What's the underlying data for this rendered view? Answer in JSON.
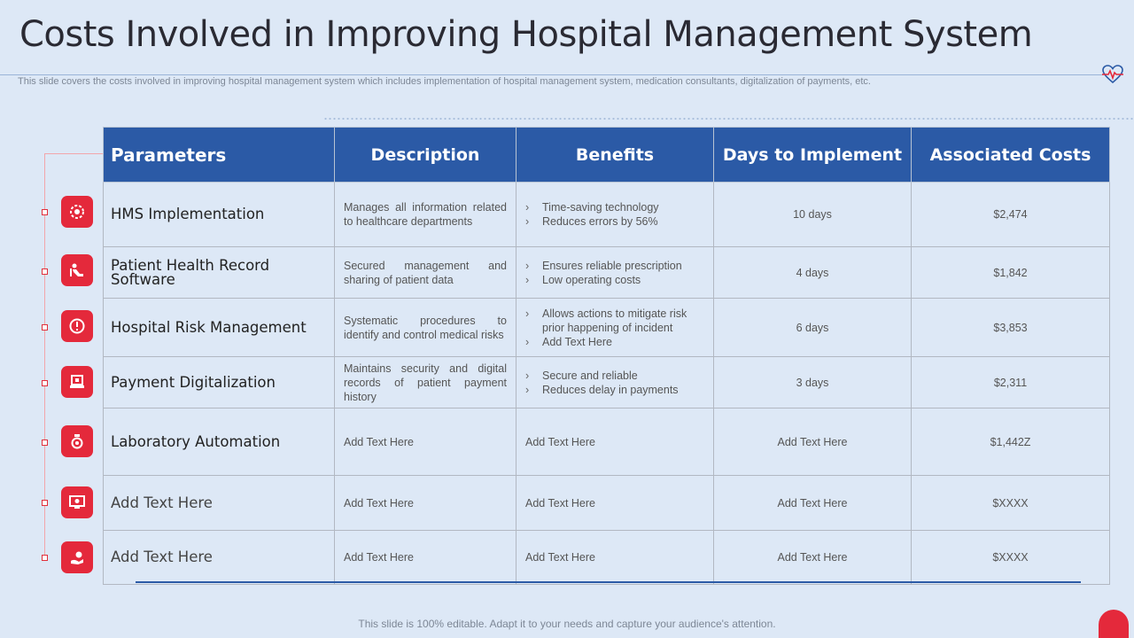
{
  "title": "Costs Involved in Improving Hospital Management System",
  "subtitle": "This slide covers the costs involved in improving hospital management system which includes implementation of hospital management system, medication consultants, digitalization of payments, etc.",
  "footer": "This slide is 100% editable. Adapt it to your needs and capture your audience's attention.",
  "colors": {
    "header_blue": "#2b5aa6",
    "accent_red": "#e4293b",
    "background": "#dde8f6"
  },
  "table": {
    "headers": [
      "Parameters",
      "Description",
      "Benefits",
      "Days to Implement",
      "Associated Costs"
    ],
    "rows": [
      {
        "icon": "gear-icon",
        "parameter": "HMS Implementation",
        "description": "Manages all information related to healthcare departments",
        "benefits": [
          "Time-saving technology",
          "Reduces errors by 56%"
        ],
        "days": "10 days",
        "cost": "$2,474"
      },
      {
        "icon": "patient-bed-icon",
        "parameter": "Patient Health Record Software",
        "description": "Secured management and sharing of patient data",
        "benefits": [
          "Ensures reliable prescription",
          "Low operating costs"
        ],
        "days": "4 days",
        "cost": "$1,842"
      },
      {
        "icon": "risk-shield-icon",
        "parameter": "Hospital Risk Management",
        "description": "Systematic procedures to identify and control medical risks",
        "benefits": [
          "Allows actions to mitigate risk prior happening  of incident",
          "Add Text Here"
        ],
        "days": "6 days",
        "cost": "$3,853"
      },
      {
        "icon": "payment-laptop-icon",
        "parameter": "Payment Digitalization",
        "description": "Maintains security and digital records of patient payment history",
        "benefits": [
          "Secure and reliable",
          "Reduces delay in payments"
        ],
        "days": "3 days",
        "cost": "$2,311"
      },
      {
        "icon": "lab-flask-icon",
        "parameter": "Laboratory Automation",
        "description": "Add Text Here",
        "benefits_text": "Add Text Here",
        "days": "Add Text Here",
        "cost": "$1,442Z"
      },
      {
        "icon": "monitor-icon",
        "parameter": "Add Text Here",
        "description": "Add Text Here",
        "benefits_text": "Add Text Here",
        "days": "Add Text Here",
        "cost": "$XXXX"
      },
      {
        "icon": "care-hand-icon",
        "parameter": "Add Text Here",
        "description": "Add Text Here",
        "benefits_text": "Add Text Here",
        "days": "Add Text Here",
        "cost": "$XXXX"
      }
    ]
  }
}
